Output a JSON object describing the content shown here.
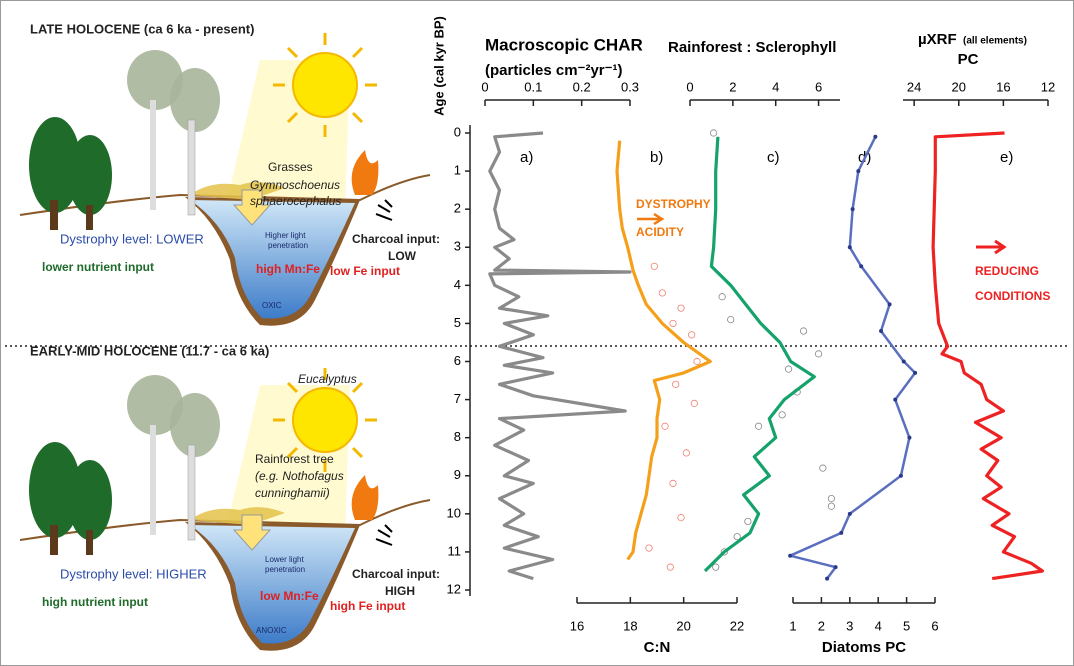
{
  "diagram": {
    "late": {
      "title": "LATE HOLOCENE (ca 6 ka - present)",
      "grasses": "Grasses",
      "species_1": "Gymnoschoenus",
      "species_2": "sphaerocephalus",
      "dystrophy": "Dystrophy level: LOWER",
      "light_1": "Higher light",
      "light_2": "penetration",
      "charcoal_1": "Charcoal input:",
      "charcoal_2": "LOW",
      "nutrient": "lower nutrient input",
      "mnfe": "high Mn:Fe",
      "fe": "low Fe input",
      "oxygen": "OXIC"
    },
    "early": {
      "title": "EARLY-MID HOLOCENE (11.7 - ca 6 ka)",
      "eucalyptus": "Eucalyptus",
      "tree_1": "Rainforest tree",
      "tree_2": "(e.g. Nothofagus",
      "tree_3": "cunninghamii)",
      "dystrophy": "Dystrophy level: HIGHER",
      "light_1": "Lower light",
      "light_2": "penetration",
      "charcoal_1": "Charcoal input:",
      "charcoal_2": "HIGH",
      "nutrient": "high nutrient input",
      "mnfe": "low Mn:Fe",
      "fe": "high Fe input",
      "oxygen": "ANOXIC"
    }
  },
  "chart_data": {
    "type": "line",
    "ylabel": "Age (cal kyr BP)",
    "ylim": [
      0,
      12
    ],
    "yticks": [
      0,
      1,
      2,
      3,
      4,
      5,
      6,
      7,
      8,
      9,
      10,
      11,
      12
    ],
    "panels": [
      {
        "label": "a)",
        "title": [
          "Macroscopic CHAR",
          "(particles cm⁻²yr⁻¹)"
        ],
        "axis": "top",
        "xlim": [
          0,
          0.3
        ],
        "xticks": [
          0,
          0.1,
          0.2,
          0.3
        ],
        "series": [
          {
            "color": "#8a8a8a",
            "marker": "none",
            "ages": [
              0,
              0.1,
              0.5,
              1,
              1.5,
              2,
              2.5,
              2.8,
              3,
              3.3,
              3.6,
              3.65,
              3.7,
              4,
              4.3,
              4.6,
              4.8,
              5,
              5.3,
              5.6,
              5.9,
              6.1,
              6.3,
              6.6,
              6.9,
              7.3,
              7.5,
              7.8,
              8.2,
              8.6,
              9,
              9.2,
              9.6,
              10,
              10.3,
              10.6,
              10.9,
              11.2,
              11.5,
              11.7
            ],
            "values": [
              0.12,
              0.02,
              0.03,
              0.01,
              0.03,
              0.02,
              0.03,
              0.06,
              0.02,
              0.05,
              0.02,
              0.3,
              0.01,
              0.02,
              0.07,
              0.03,
              0.13,
              0.04,
              0.1,
              0.03,
              0.12,
              0.04,
              0.14,
              0.03,
              0.1,
              0.29,
              0.03,
              0.08,
              0.02,
              0.09,
              0.04,
              0.1,
              0.03,
              0.08,
              0.04,
              0.11,
              0.04,
              0.14,
              0.05,
              0.1
            ]
          }
        ]
      },
      {
        "label": "b)",
        "title": [
          "C:N"
        ],
        "axis": "bottom",
        "xlim": [
          16,
          22
        ],
        "xticks": [
          16,
          18,
          20,
          22
        ],
        "series": [
          {
            "color": "#f08070",
            "marker": "open-circle",
            "ages": [
              3.5,
              4.2,
              4.6,
              5.0,
              5.3,
              6.0,
              6.6,
              7.1,
              7.7,
              8.4,
              9.2,
              10.1,
              10.9,
              11.4
            ],
            "values": [
              18.9,
              19.2,
              19.9,
              19.6,
              20.3,
              20.5,
              19.7,
              20.4,
              19.3,
              20.1,
              19.6,
              19.9,
              18.7,
              19.5
            ]
          },
          {
            "color": "#f5a01a",
            "marker": "none",
            "ages": [
              0.2,
              1,
              2,
              2.5,
              3,
              3.6,
              4,
              4.5,
              5,
              5.5,
              5.8,
              6,
              6.3,
              6.5,
              7,
              7.5,
              8,
              8.5,
              9,
              9.5,
              10,
              10.5,
              11,
              11.2
            ],
            "values": [
              17.6,
              17.5,
              17.6,
              17.7,
              17.9,
              18.1,
              18.3,
              18.6,
              19.2,
              20.0,
              20.6,
              21.0,
              20.0,
              18.9,
              19.1,
              19.0,
              19.0,
              18.8,
              18.7,
              18.6,
              18.4,
              18.2,
              18.1,
              17.9
            ]
          }
        ]
      },
      {
        "label": "c)",
        "title": [
          "Rainforest : Sclerophyll"
        ],
        "axis": "top",
        "xlim": [
          0,
          7
        ],
        "xticks": [
          0,
          2,
          4,
          6
        ],
        "series": [
          {
            "color": "#888888",
            "marker": "open-circle",
            "ages": [
              0.0,
              4.3,
              4.9,
              5.2,
              5.8,
              6.2,
              6.8,
              7.4,
              7.7,
              8.8,
              9.6,
              9.8,
              10.2,
              10.6,
              11.0,
              11.4
            ],
            "values": [
              1.1,
              1.5,
              1.9,
              5.3,
              6.0,
              4.6,
              5.0,
              4.3,
              3.2,
              6.2,
              6.6,
              6.6,
              2.7,
              2.2,
              1.6,
              1.2
            ]
          },
          {
            "color": "#16a36b",
            "marker": "none",
            "ages": [
              0.1,
              1,
              2,
              3,
              3.5,
              4,
              4.5,
              5,
              5.5,
              6,
              6.4,
              7,
              7.5,
              8,
              8.5,
              9,
              9.5,
              10,
              10.5,
              11,
              11.5
            ],
            "values": [
              1.3,
              1.2,
              1.2,
              1.1,
              1.0,
              1.9,
              2.6,
              3.3,
              4.2,
              4.7,
              5.8,
              4.4,
              3.7,
              4.0,
              3.0,
              3.7,
              2.5,
              3.2,
              2.8,
              1.6,
              0.7
            ]
          }
        ]
      },
      {
        "label": "d)",
        "title": [
          "Diatoms PC"
        ],
        "axis": "bottom",
        "xlim": [
          1,
          6
        ],
        "xticks": [
          1,
          2,
          3,
          4,
          5,
          6
        ],
        "series": [
          {
            "color": "#5b6fc0",
            "marker": "dot",
            "ages": [
              0.1,
              1,
              2,
              3,
              3.5,
              4.5,
              5.2,
              6,
              6.3,
              7,
              8,
              9,
              10,
              10.5,
              11.1,
              11.4,
              11.7
            ],
            "values": [
              3.9,
              3.3,
              3.1,
              3.0,
              3.4,
              4.4,
              4.1,
              4.9,
              5.3,
              4.6,
              5.1,
              4.8,
              3.0,
              2.7,
              0.9,
              2.5,
              2.2
            ]
          }
        ]
      },
      {
        "label": "e)",
        "title": [
          "µXRF",
          "(all elements)",
          "PC"
        ],
        "axis": "top",
        "xlim": [
          25,
          12
        ],
        "xticks": [
          24,
          20,
          16,
          12
        ],
        "series": [
          {
            "color": "#ee2222",
            "marker": "none",
            "ages": [
              0,
              0.1,
              1,
              2,
              3,
              4,
              5,
              5.6,
              5.8,
              6,
              6.3,
              6.6,
              7,
              7.3,
              7.6,
              8,
              8.3,
              8.6,
              9,
              9.3,
              9.6,
              10,
              10.3,
              10.6,
              11,
              11.3,
              11.5,
              11.7
            ],
            "values": [
              15.9,
              22.1,
              22.1,
              22.2,
              22.3,
              22.1,
              21.8,
              21.0,
              21.5,
              19.8,
              19.5,
              18.0,
              17.5,
              16.0,
              18.5,
              16.2,
              18.0,
              16.5,
              17.5,
              16.2,
              17.8,
              15.5,
              17.0,
              15.0,
              16.0,
              13.5,
              12.5,
              17.0
            ]
          }
        ]
      }
    ],
    "annotations": [
      "DYSTROPHY",
      "ACIDITY",
      "REDUCING",
      "CONDITIONS"
    ]
  }
}
